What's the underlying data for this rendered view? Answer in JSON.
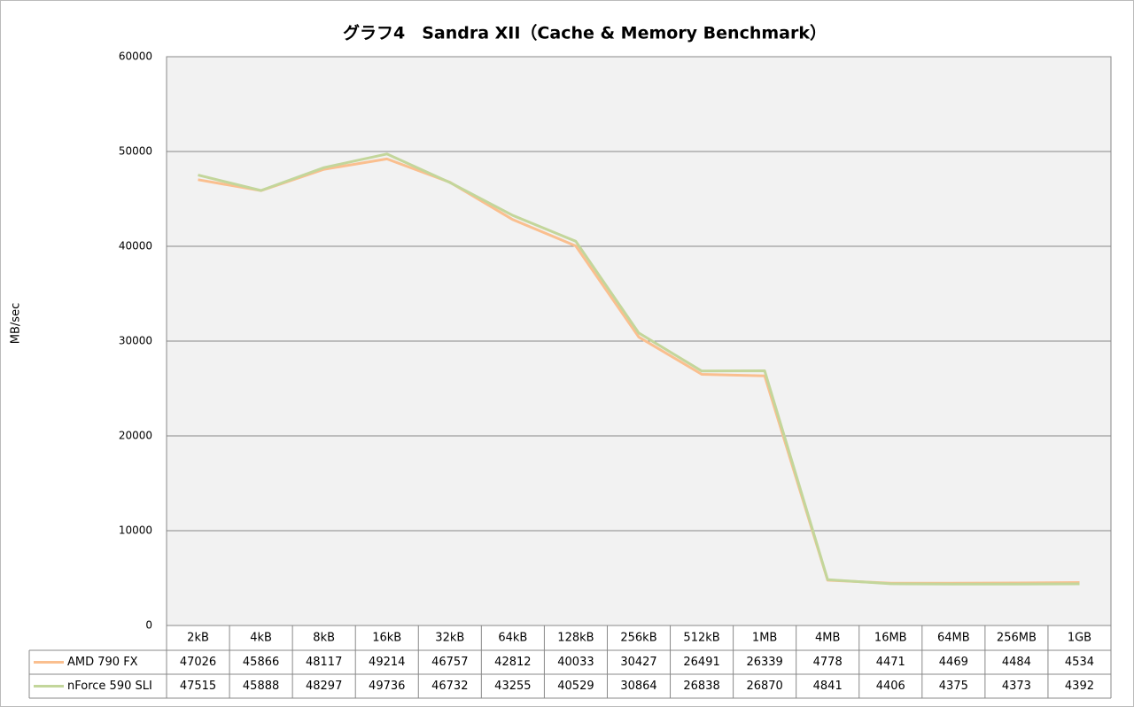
{
  "chart_data": {
    "type": "line",
    "title": "グラフ4　Sandra XII（Cache & Memory Benchmark）",
    "y_label": "MB/sec",
    "categories": [
      "2kB",
      "4kB",
      "8kB",
      "16kB",
      "32kB",
      "64kB",
      "128kB",
      "256kB",
      "512kB",
      "1MB",
      "4MB",
      "16MB",
      "64MB",
      "256MB",
      "1GB"
    ],
    "series": [
      {
        "name": "AMD 790 FX",
        "color": "#fabf8f",
        "values": [
          47026,
          45866,
          48117,
          49214,
          46757,
          42812,
          40033,
          30427,
          26491,
          26339,
          4778,
          4471,
          4469,
          4484,
          4534
        ]
      },
      {
        "name": "nForce 590 SLI",
        "color": "#c3d69b",
        "values": [
          47515,
          45888,
          48297,
          49736,
          46732,
          43255,
          40529,
          30864,
          26838,
          26870,
          4841,
          4406,
          4375,
          4373,
          4392
        ]
      }
    ],
    "ylim": [
      0,
      60000
    ],
    "yticks": [
      0,
      10000,
      20000,
      30000,
      40000,
      50000,
      60000
    ],
    "grid": true
  }
}
